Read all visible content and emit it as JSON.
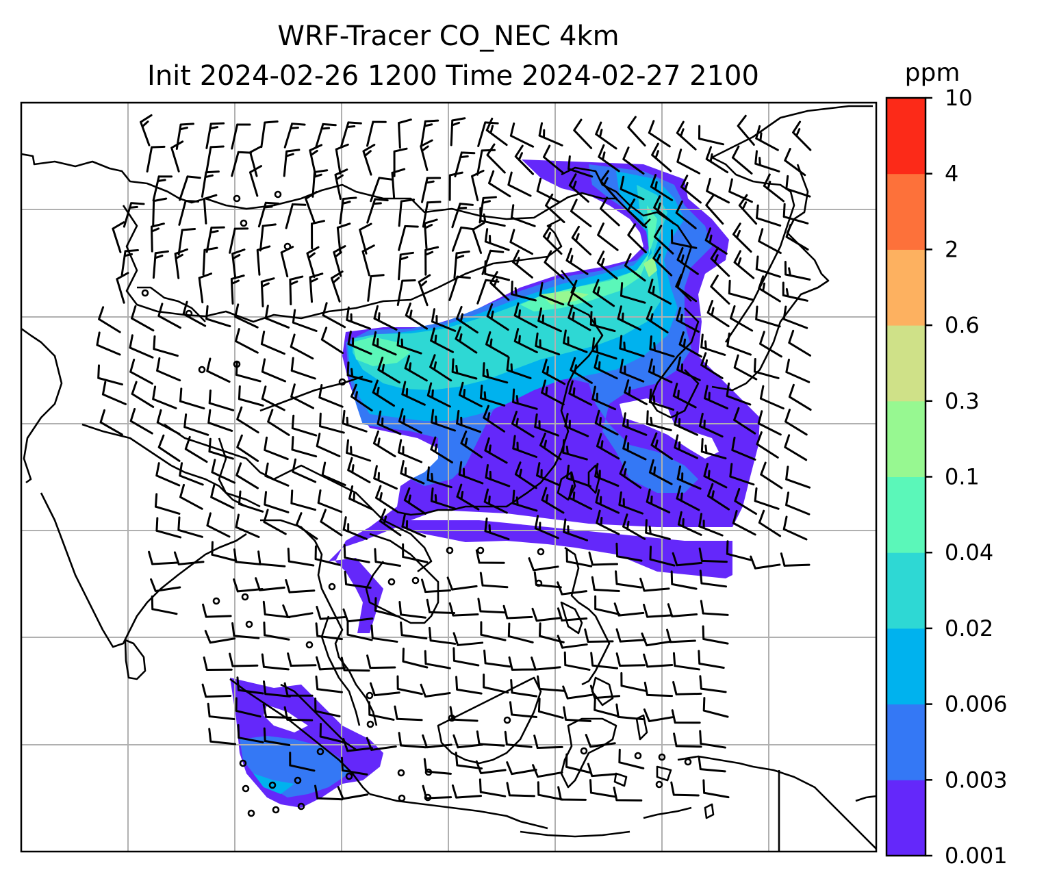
{
  "title": {
    "line1": "WRF-Tracer CO_NEC 4km",
    "line2": "Init 2024-02-26 1200 Time 2024-02-27 2100"
  },
  "colorbar": {
    "unit": "ppm",
    "levels": [
      "0.001",
      "0.003",
      "0.006",
      "0.02",
      "0.04",
      "0.1",
      "0.3",
      "0.6",
      "2",
      "4",
      "10"
    ],
    "colors": [
      "#6428fa",
      "#3478f5",
      "#00b2ee",
      "#2ed8d4",
      "#5bf7b9",
      "#97f891",
      "#cfe188",
      "#fdb160",
      "#fd713a",
      "#fc2a18"
    ]
  },
  "map": {
    "land_outline_color": "#000000",
    "gridline_color": "#b0b0b0",
    "wind_barb_color": "#000000"
  }
}
